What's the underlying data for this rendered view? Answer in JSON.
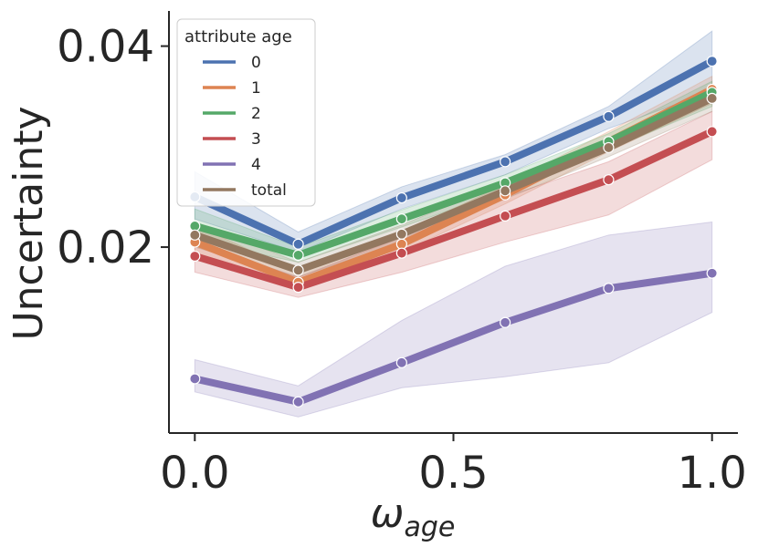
{
  "chart_data": {
    "type": "line",
    "title": "",
    "xlabel": "ω",
    "xlabel_sub": "age",
    "ylabel": "Uncertainty",
    "x": [
      0.0,
      0.2,
      0.4,
      0.6,
      0.8,
      1.0
    ],
    "xlim": [
      -0.05,
      1.05
    ],
    "ylim": [
      0.0015,
      0.0435
    ],
    "xticks": [
      0.0,
      0.5,
      1.0
    ],
    "xtick_labels": [
      "0.0",
      "0.5",
      "1.0"
    ],
    "yticks": [
      0.02,
      0.04
    ],
    "ytick_labels": [
      "0.02",
      "0.04"
    ],
    "grid": false,
    "legend": {
      "title": "attribute age",
      "position": "top-left"
    },
    "series": [
      {
        "name": "0",
        "color": "#4c72b0",
        "values": [
          0.025,
          0.0203,
          0.0249,
          0.0285,
          0.033,
          0.0385
        ],
        "lower": [
          0.0228,
          0.0195,
          0.0238,
          0.0272,
          0.0318,
          0.0355
        ],
        "upper": [
          0.0275,
          0.0215,
          0.026,
          0.0292,
          0.034,
          0.0415
        ]
      },
      {
        "name": "1",
        "color": "#dd8452",
        "values": [
          0.0205,
          0.0165,
          0.0203,
          0.0252,
          0.0305,
          0.0357
        ],
        "lower": [
          0.019,
          0.0158,
          0.0195,
          0.0243,
          0.0295,
          0.0343
        ],
        "upper": [
          0.0222,
          0.0175,
          0.0215,
          0.0262,
          0.0315,
          0.037
        ]
      },
      {
        "name": "2",
        "color": "#55a868",
        "values": [
          0.0221,
          0.0192,
          0.0228,
          0.0264,
          0.0305,
          0.0354
        ],
        "lower": [
          0.0207,
          0.0185,
          0.022,
          0.0256,
          0.0297,
          0.034
        ],
        "upper": [
          0.0238,
          0.02,
          0.0237,
          0.0272,
          0.0313,
          0.0365
        ]
      },
      {
        "name": "3",
        "color": "#c44e52",
        "values": [
          0.0191,
          0.016,
          0.0194,
          0.0231,
          0.0267,
          0.0315
        ],
        "lower": [
          0.0175,
          0.015,
          0.0175,
          0.0205,
          0.0232,
          0.0287
        ],
        "upper": [
          0.0205,
          0.017,
          0.021,
          0.025,
          0.0285,
          0.0335
        ]
      },
      {
        "name": "4",
        "color": "#8172b3",
        "values": [
          0.0069,
          0.0046,
          0.0085,
          0.0125,
          0.0159,
          0.0174
        ],
        "lower": [
          0.0056,
          0.0031,
          0.006,
          0.0071,
          0.0085,
          0.0135
        ],
        "upper": [
          0.0088,
          0.0062,
          0.0127,
          0.0181,
          0.0212,
          0.0225
        ]
      },
      {
        "name": "total",
        "color": "#937860",
        "values": [
          0.0212,
          0.0177,
          0.0213,
          0.0256,
          0.0299,
          0.0348
        ],
        "lower": [
          0.02,
          0.017,
          0.0205,
          0.0248,
          0.029,
          0.0335
        ],
        "upper": [
          0.0225,
          0.0185,
          0.0222,
          0.0265,
          0.0308,
          0.036
        ]
      }
    ]
  }
}
